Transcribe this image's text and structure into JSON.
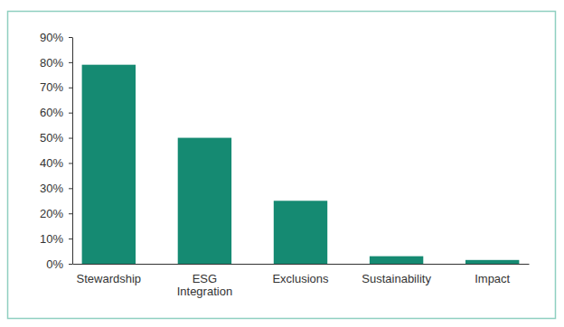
{
  "chart_data": {
    "type": "bar",
    "categories": [
      "Stewardship",
      "ESG Integration",
      "Exclusions",
      "Sustainability",
      "Impact"
    ],
    "values": [
      79,
      50,
      25,
      3,
      1.5
    ],
    "color": "#158a72",
    "ylim": [
      0,
      90
    ],
    "yticks": [
      {
        "value": 0,
        "label": "0%"
      },
      {
        "value": 10,
        "label": "10%"
      },
      {
        "value": 20,
        "label": "20%"
      },
      {
        "value": 30,
        "label": "30%"
      },
      {
        "value": 40,
        "label": "40%"
      },
      {
        "value": 50,
        "label": "50%"
      },
      {
        "value": 60,
        "label": "60%"
      },
      {
        "value": 70,
        "label": "70%"
      },
      {
        "value": 80,
        "label": "80%"
      },
      {
        "value": 90,
        "label": "90%"
      }
    ],
    "grid": false
  }
}
